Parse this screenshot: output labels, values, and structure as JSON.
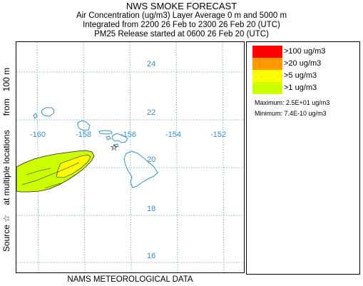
{
  "header": {
    "title": "NWS SMOKE FORECAST",
    "line1": "Air Concentration (ug/m3) Layer Average    0 m and  5000 m",
    "line2": "Integrated from 2200 26 Feb to 2300 26 Feb 20 (UTC)",
    "line3": "PM25 Release started at 0600 26 Feb 20 (UTC)"
  },
  "side_label": "Source ☆    at multiple locations      from   100 m",
  "footer": "NAMS METEOROLOGICAL DATA",
  "map": {
    "lat_labels": [
      "24",
      "22",
      "20",
      "18",
      "16"
    ],
    "lon_labels": [
      "-160",
      "-158",
      "-156",
      "-154",
      "-152"
    ],
    "source_marker": "☆",
    "grid_color": "#5aa0d6",
    "coast_color": "#3a8fc8"
  },
  "legend": {
    "items": [
      {
        "label": ">100 ug/m3",
        "color": "#ff0000"
      },
      {
        "label": ">20 ug/m3",
        "color": "#ff9900"
      },
      {
        "label": ">5 ug/m3",
        "color": "#ffff00"
      },
      {
        "label": ">1 ug/m3",
        "color": "#ccff00"
      }
    ],
    "maximum": "Maximum: 2.5E+01 ug/m3",
    "minimum": "Minimum: 7.4E-10 ug/m3"
  }
}
